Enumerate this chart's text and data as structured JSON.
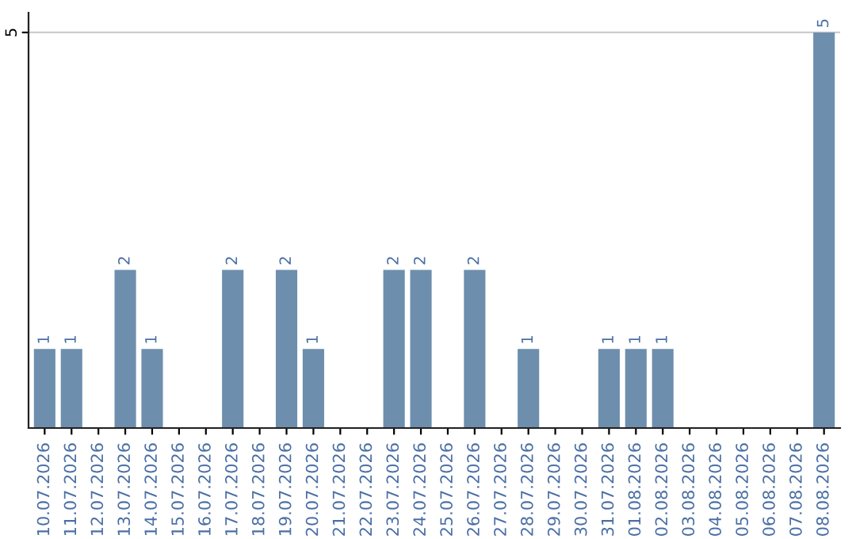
{
  "chart_data": {
    "type": "bar",
    "categories": [
      "10.07.2026",
      "11.07.2026",
      "12.07.2026",
      "13.07.2026",
      "14.07.2026",
      "15.07.2026",
      "16.07.2026",
      "17.07.2026",
      "18.07.2026",
      "19.07.2026",
      "20.07.2026",
      "21.07.2026",
      "22.07.2026",
      "23.07.2026",
      "24.07.2026",
      "25.07.2026",
      "26.07.2026",
      "27.07.2026",
      "28.07.2026",
      "29.07.2026",
      "30.07.2026",
      "31.07.2026",
      "01.08.2026",
      "02.08.2026",
      "03.08.2026",
      "04.08.2026",
      "05.08.2026",
      "06.08.2026",
      "07.08.2026",
      "08.08.2026"
    ],
    "values": [
      1,
      1,
      0,
      2,
      1,
      0,
      0,
      2,
      0,
      2,
      1,
      0,
      0,
      2,
      2,
      0,
      2,
      0,
      1,
      0,
      0,
      1,
      1,
      1,
      0,
      0,
      0,
      0,
      0,
      5
    ],
    "value_labels": [
      "1",
      "1",
      null,
      "2",
      "1",
      null,
      null,
      "2",
      null,
      "2",
      "1",
      null,
      null,
      "2",
      "2",
      null,
      "2",
      null,
      "1",
      null,
      null,
      "1",
      "1",
      "1",
      null,
      null,
      null,
      null,
      null,
      "5"
    ],
    "color": "#6d8fad",
    "ylim": [
      0,
      5.25
    ],
    "yticks": [
      5
    ],
    "grid": "y"
  }
}
